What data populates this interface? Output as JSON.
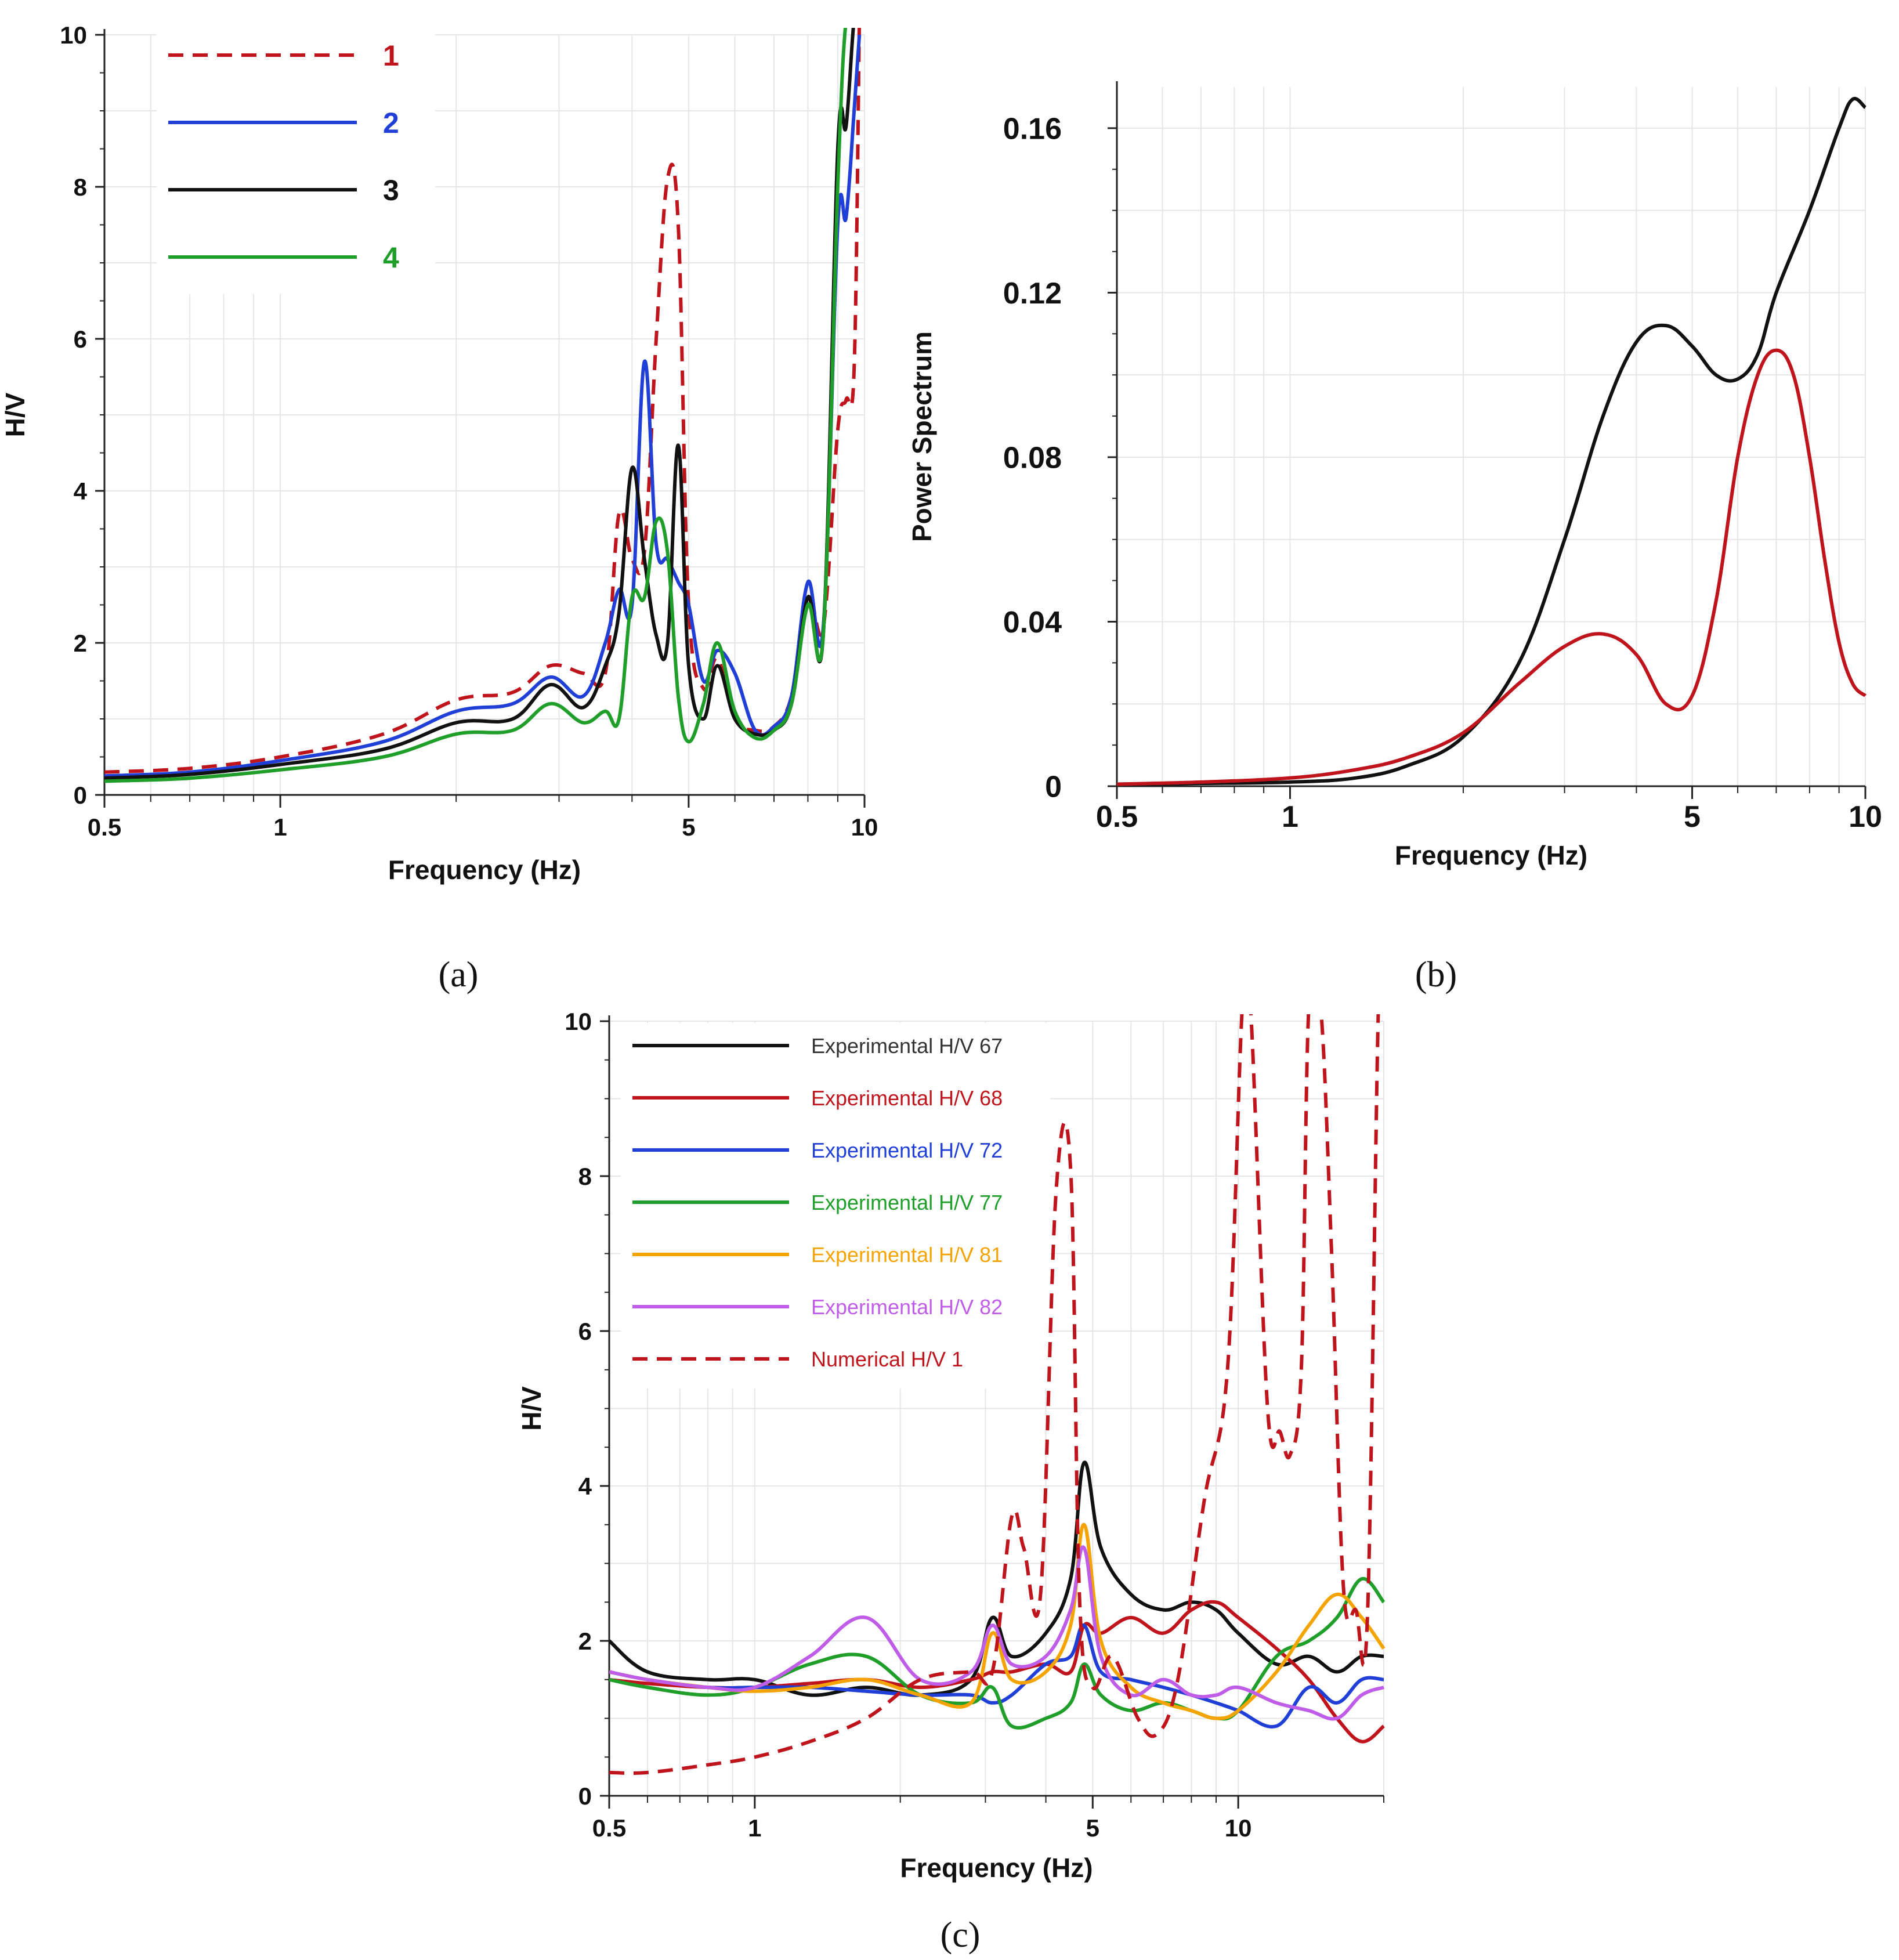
{
  "captions": [
    "(a)",
    "(b)",
    "(c)"
  ],
  "colors": {
    "red": "#c0141c",
    "blue": "#1f3fd6",
    "black": "#111111",
    "green": "#1f9e2a",
    "orange": "#f5a300",
    "violet": "#bf5ce8"
  },
  "chart_data": [
    {
      "type": "line",
      "panel": "a",
      "xlabel": "Frequency (Hz)",
      "ylabel": "H/V",
      "xscale": "log",
      "xlim": [
        0.5,
        10
      ],
      "ylim": [
        0,
        10
      ],
      "xticks": [
        {
          "v": 0.5,
          "label": "0.5"
        },
        {
          "v": 1,
          "label": "1"
        },
        {
          "v": 5,
          "label": "5"
        },
        {
          "v": 10,
          "label": "10"
        }
      ],
      "yticks": [
        {
          "v": 0,
          "label": "0"
        },
        {
          "v": 2,
          "label": "2"
        },
        {
          "v": 4,
          "label": "4"
        },
        {
          "v": 6,
          "label": "6"
        },
        {
          "v": 8,
          "label": "8"
        },
        {
          "v": 10,
          "label": "10"
        }
      ],
      "legend_position": "top-left",
      "series": [
        {
          "name": "1",
          "color": "#c0141c",
          "dash": true,
          "x": [
            0.5,
            0.7,
            1,
            1.5,
            2,
            2.5,
            2.9,
            3.3,
            3.6,
            3.8,
            4.0,
            4.2,
            4.4,
            4.6,
            4.8,
            5.0,
            5.3,
            5.6,
            6.0,
            6.5,
            7.0,
            7.5,
            8.0,
            8.5,
            9.0,
            9.3,
            9.6,
            9.8
          ],
          "y": [
            0.3,
            0.35,
            0.5,
            0.8,
            1.25,
            1.35,
            1.7,
            1.6,
            1.6,
            3.7,
            3.1,
            3.2,
            6.0,
            8.1,
            7.5,
            2.5,
            1.4,
            1.8,
            1.0,
            0.85,
            0.9,
            1.3,
            2.6,
            2.2,
            4.8,
            5.2,
            5.6,
            10.2
          ]
        },
        {
          "name": "2",
          "color": "#1f3fd6",
          "dash": false,
          "x": [
            0.5,
            0.7,
            1,
            1.5,
            2,
            2.5,
            2.9,
            3.3,
            3.6,
            3.8,
            4.0,
            4.2,
            4.4,
            4.6,
            4.8,
            5.0,
            5.3,
            5.6,
            6.0,
            6.5,
            7.0,
            7.5,
            8.0,
            8.5,
            9.0,
            9.3,
            9.6,
            9.8
          ],
          "y": [
            0.25,
            0.3,
            0.45,
            0.7,
            1.1,
            1.2,
            1.55,
            1.3,
            2.0,
            2.7,
            2.5,
            5.7,
            3.3,
            3.1,
            2.8,
            2.5,
            1.5,
            1.9,
            1.6,
            0.85,
            0.9,
            1.3,
            2.8,
            2.2,
            7.5,
            7.6,
            9.0,
            10.0
          ]
        },
        {
          "name": "3",
          "color": "#111111",
          "dash": false,
          "x": [
            0.5,
            0.7,
            1,
            1.5,
            2,
            2.5,
            2.9,
            3.3,
            3.6,
            3.8,
            4.0,
            4.2,
            4.4,
            4.6,
            4.8,
            5.0,
            5.3,
            5.6,
            6.0,
            6.5,
            7.0,
            7.5,
            8.0,
            8.5,
            9.0,
            9.3,
            9.6,
            9.8
          ],
          "y": [
            0.22,
            0.27,
            0.4,
            0.6,
            0.95,
            1.0,
            1.45,
            1.15,
            1.7,
            2.4,
            4.3,
            3.1,
            2.1,
            2.0,
            4.6,
            1.7,
            1.0,
            1.7,
            1.0,
            0.8,
            0.85,
            1.2,
            2.6,
            2.1,
            8.5,
            8.8,
            10.2,
            10.2
          ]
        },
        {
          "name": "4",
          "color": "#1f9e2a",
          "dash": false,
          "x": [
            0.5,
            0.7,
            1,
            1.5,
            2,
            2.5,
            2.9,
            3.3,
            3.6,
            3.8,
            4.0,
            4.2,
            4.4,
            4.6,
            4.8,
            5.0,
            5.3,
            5.6,
            6.0,
            6.5,
            7.0,
            7.5,
            8.0,
            8.5,
            9.0,
            9.3,
            9.6,
            9.8
          ],
          "y": [
            0.18,
            0.22,
            0.33,
            0.5,
            0.8,
            0.85,
            1.2,
            0.95,
            1.1,
            1.0,
            2.6,
            2.6,
            3.6,
            3.2,
            1.3,
            0.7,
            1.2,
            2.0,
            1.1,
            0.75,
            0.85,
            1.2,
            2.5,
            2.1,
            8.0,
            10.2,
            10.2,
            10.2
          ]
        }
      ]
    },
    {
      "type": "line",
      "panel": "b",
      "xlabel": "Frequency (Hz)",
      "ylabel": "Power Spectrum",
      "xscale": "log",
      "xlim": [
        0.5,
        10
      ],
      "ylim": [
        0,
        0.17
      ],
      "xticks": [
        {
          "v": 0.5,
          "label": "0.5"
        },
        {
          "v": 1,
          "label": "1"
        },
        {
          "v": 5,
          "label": "5"
        },
        {
          "v": 10,
          "label": "10"
        }
      ],
      "yticks": [
        {
          "v": 0,
          "label": "0"
        },
        {
          "v": 0.04,
          "label": "0.04"
        },
        {
          "v": 0.08,
          "label": "0.08"
        },
        {
          "v": 0.12,
          "label": "0.12"
        },
        {
          "v": 0.16,
          "label": "0.16"
        }
      ],
      "series": [
        {
          "name": "black",
          "color": "#111111",
          "dash": false,
          "x": [
            0.5,
            0.7,
            1,
            1.3,
            1.6,
            2.0,
            2.5,
            3.0,
            3.5,
            4.0,
            4.5,
            5.0,
            5.5,
            6.0,
            6.5,
            7.0,
            8.0,
            9.0,
            9.5,
            10
          ],
          "y": [
            0.0005,
            0.0007,
            0.001,
            0.002,
            0.005,
            0.012,
            0.03,
            0.06,
            0.09,
            0.108,
            0.112,
            0.107,
            0.1,
            0.099,
            0.105,
            0.12,
            0.14,
            0.16,
            0.167,
            0.165
          ]
        },
        {
          "name": "red",
          "color": "#c0141c",
          "dash": false,
          "x": [
            0.5,
            0.7,
            1,
            1.3,
            1.6,
            2.0,
            2.5,
            3.0,
            3.5,
            4.0,
            4.5,
            5.0,
            5.5,
            6.0,
            6.5,
            7.0,
            7.5,
            8.0,
            8.5,
            9.0,
            9.5,
            10
          ],
          "y": [
            0.0005,
            0.001,
            0.002,
            0.004,
            0.007,
            0.013,
            0.025,
            0.034,
            0.037,
            0.032,
            0.02,
            0.022,
            0.045,
            0.08,
            0.1,
            0.106,
            0.1,
            0.08,
            0.055,
            0.035,
            0.025,
            0.022
          ]
        }
      ]
    },
    {
      "type": "line",
      "panel": "c",
      "xlabel": "Frequency (Hz)",
      "ylabel": "H/V",
      "xscale": "log",
      "xlim": [
        0.5,
        20
      ],
      "ylim": [
        0,
        10
      ],
      "xticks": [
        {
          "v": 0.5,
          "label": "0.5"
        },
        {
          "v": 1,
          "label": "1"
        },
        {
          "v": 5,
          "label": "5"
        },
        {
          "v": 10,
          "label": "10"
        }
      ],
      "yticks": [
        {
          "v": 0,
          "label": "0"
        },
        {
          "v": 2,
          "label": "2"
        },
        {
          "v": 4,
          "label": "4"
        },
        {
          "v": 6,
          "label": "6"
        },
        {
          "v": 8,
          "label": "8"
        },
        {
          "v": 10,
          "label": "10"
        }
      ],
      "legend_position": "top-left",
      "series": [
        {
          "name": "Experimental H/V 67",
          "color": "#111111",
          "dash": false,
          "x": [
            0.5,
            0.6,
            0.8,
            1,
            1.3,
            1.7,
            2.2,
            2.8,
            3.1,
            3.4,
            4.0,
            4.5,
            4.8,
            5.2,
            6.0,
            7.0,
            8.0,
            9.0,
            10,
            12,
            14,
            16,
            18,
            20
          ],
          "y": [
            2.0,
            1.6,
            1.5,
            1.5,
            1.3,
            1.4,
            1.3,
            1.5,
            2.3,
            1.8,
            2.1,
            2.8,
            4.3,
            3.2,
            2.6,
            2.4,
            2.5,
            2.4,
            2.1,
            1.7,
            1.8,
            1.6,
            1.8,
            1.8
          ]
        },
        {
          "name": "Experimental H/V 68",
          "color": "#c0141c",
          "dash": false,
          "x": [
            0.5,
            0.6,
            0.8,
            1,
            1.3,
            1.7,
            2.2,
            2.8,
            3.1,
            3.4,
            4.0,
            4.5,
            4.8,
            5.2,
            6.0,
            7.0,
            8.0,
            9.0,
            10,
            12,
            14,
            16,
            18,
            20
          ],
          "y": [
            1.5,
            1.45,
            1.4,
            1.4,
            1.45,
            1.5,
            1.4,
            1.5,
            1.6,
            1.6,
            1.7,
            1.6,
            2.2,
            2.1,
            2.3,
            2.1,
            2.4,
            2.5,
            2.3,
            1.9,
            1.5,
            1.0,
            0.7,
            0.9
          ]
        },
        {
          "name": "Experimental H/V 72",
          "color": "#1f3fd6",
          "dash": false,
          "x": [
            0.5,
            0.6,
            0.8,
            1,
            1.3,
            1.7,
            2.2,
            2.8,
            3.1,
            3.4,
            4.0,
            4.5,
            4.8,
            5.2,
            6.0,
            7.0,
            8.0,
            9.0,
            10,
            12,
            14,
            16,
            18,
            20
          ],
          "y": [
            1.6,
            1.5,
            1.4,
            1.4,
            1.4,
            1.35,
            1.3,
            1.3,
            1.2,
            1.3,
            1.7,
            1.8,
            2.2,
            1.6,
            1.5,
            1.4,
            1.3,
            1.2,
            1.1,
            0.9,
            1.4,
            1.2,
            1.5,
            1.5
          ]
        },
        {
          "name": "Experimental H/V 77",
          "color": "#1f9e2a",
          "dash": false,
          "x": [
            0.5,
            0.6,
            0.8,
            1,
            1.3,
            1.7,
            2.2,
            2.8,
            3.1,
            3.4,
            4.0,
            4.5,
            4.8,
            5.2,
            6.0,
            7.0,
            8.0,
            9.0,
            10,
            12,
            14,
            16,
            18,
            20
          ],
          "y": [
            1.5,
            1.4,
            1.3,
            1.4,
            1.7,
            1.8,
            1.3,
            1.2,
            1.4,
            0.9,
            1.0,
            1.2,
            1.7,
            1.3,
            1.1,
            1.2,
            1.1,
            1.0,
            1.1,
            1.8,
            2.0,
            2.3,
            2.8,
            2.5
          ]
        },
        {
          "name": "Experimental H/V 81",
          "color": "#f5a300",
          "dash": false,
          "x": [
            0.5,
            0.6,
            0.8,
            1,
            1.3,
            1.7,
            2.2,
            2.8,
            3.1,
            3.4,
            4.0,
            4.5,
            4.8,
            5.2,
            6.0,
            7.0,
            8.0,
            9.0,
            10,
            12,
            14,
            16,
            18,
            20
          ],
          "y": [
            1.6,
            1.5,
            1.4,
            1.35,
            1.4,
            1.5,
            1.3,
            1.2,
            2.1,
            1.5,
            1.6,
            2.2,
            3.5,
            2.0,
            1.4,
            1.2,
            1.1,
            1.0,
            1.1,
            1.6,
            2.2,
            2.6,
            2.3,
            1.9
          ]
        },
        {
          "name": "Experimental H/V 82",
          "color": "#bf5ce8",
          "dash": false,
          "x": [
            0.5,
            0.6,
            0.8,
            1,
            1.3,
            1.7,
            2.2,
            2.8,
            3.1,
            3.4,
            4.0,
            4.5,
            4.8,
            5.2,
            6.0,
            7.0,
            8.0,
            9.0,
            10,
            12,
            14,
            16,
            18,
            20
          ],
          "y": [
            1.6,
            1.5,
            1.4,
            1.4,
            1.8,
            2.3,
            1.5,
            1.6,
            2.2,
            1.7,
            1.8,
            2.4,
            3.2,
            1.8,
            1.3,
            1.5,
            1.3,
            1.3,
            1.4,
            1.2,
            1.1,
            1.0,
            1.3,
            1.4
          ]
        },
        {
          "name": "Numerical H/V 1",
          "color": "#c0141c",
          "dash": true,
          "x": [
            0.5,
            0.6,
            0.8,
            1,
            1.3,
            1.7,
            2.2,
            2.8,
            3.1,
            3.4,
            3.6,
            3.9,
            4.2,
            4.5,
            4.7,
            5.0,
            5.5,
            6.2,
            6.8,
            7.5,
            8.5,
            9.5,
            10.2,
            10.6,
            11.5,
            12.2,
            12.8,
            13.5,
            14.0,
            14.8,
            15.6,
            16.5,
            17.5,
            18.5,
            19.5,
            20
          ],
          "y": [
            0.3,
            0.3,
            0.4,
            0.5,
            0.7,
            1.0,
            1.5,
            1.6,
            1.6,
            3.6,
            3.2,
            2.6,
            7.8,
            8.1,
            2.5,
            1.4,
            1.8,
            1.0,
            0.8,
            1.5,
            3.8,
            5.5,
            10.2,
            10.2,
            5.0,
            4.7,
            4.4,
            5.5,
            10.2,
            10.2,
            7.0,
            2.7,
            2.4,
            2.3,
            10.2,
            10.2
          ]
        }
      ]
    }
  ]
}
